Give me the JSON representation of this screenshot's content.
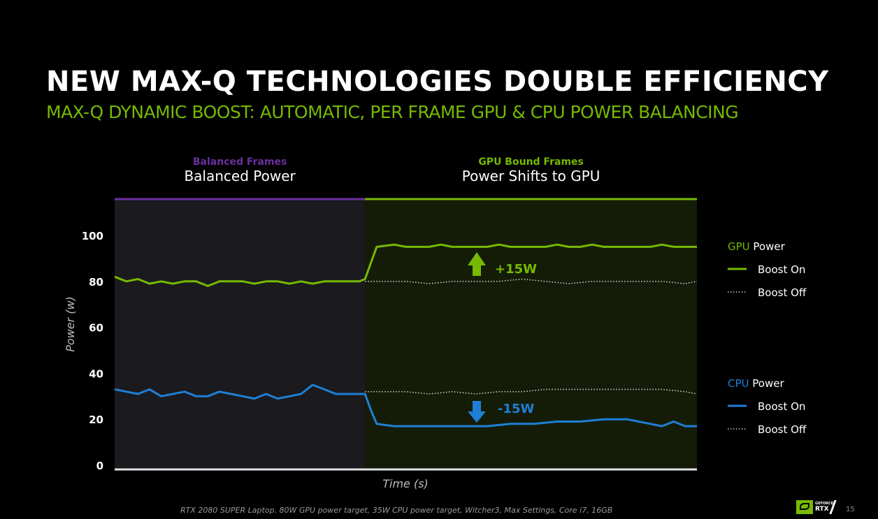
{
  "slide": {
    "title": "NEW MAX-Q TECHNOLOGIES DOUBLE EFFICIENCY",
    "subtitle": "MAX-Q DYNAMIC BOOST: AUTOMATIC, PER FRAME GPU & CPU POWER BALANCING",
    "footnote": "RTX 2080 SUPER Laptop. 80W GPU power target, 35W CPU power target, Witcher3, Max Settings, Core i7, 16GB",
    "page_number": "15",
    "logo_text_top": "GEFORCE",
    "logo_text_bottom": "RTX",
    "colors": {
      "accent_green": "#76b900",
      "purple": "#6b2fa0",
      "cpu_blue": "#1f7fd6"
    }
  },
  "chart_data": {
    "type": "line",
    "ylabel": "Power (w)",
    "xlabel": "Time (s)",
    "ylim": [
      0,
      100
    ],
    "yticks": [
      0,
      20,
      40,
      60,
      80,
      100
    ],
    "regions": [
      {
        "small_label": "Balanced Frames",
        "big_label": "Balanced Power",
        "color": "#6b2fa0",
        "x_range": [
          0,
          43
        ]
      },
      {
        "small_label": "GPU Bound Frames",
        "big_label": "Power Shifts to GPU",
        "color": "#76b900",
        "x_range": [
          43,
          100
        ]
      }
    ],
    "annotations": [
      {
        "text": "+15W",
        "direction": "up",
        "color": "#76b900"
      },
      {
        "text": "-15W",
        "direction": "down",
        "color": "#1f7fd6"
      }
    ],
    "legend": {
      "placement": "right",
      "groups": [
        {
          "title_colored": "GPU",
          "title_rest": " Power",
          "color": "#76b900",
          "items": [
            {
              "label": "Boost On",
              "style": "solid"
            },
            {
              "label": "Boost Off",
              "style": "dotted"
            }
          ]
        },
        {
          "title_colored": "CPU",
          "title_rest": " Power",
          "color": "#1f7fd6",
          "items": [
            {
              "label": "Boost On",
              "style": "solid"
            },
            {
              "label": "Boost Off",
              "style": "dotted"
            }
          ]
        }
      ]
    },
    "series": [
      {
        "name": "GPU Power Boost On",
        "color": "#76b900",
        "style": "solid",
        "x": [
          0,
          2,
          4,
          6,
          8,
          10,
          12,
          14,
          16,
          18,
          20,
          22,
          24,
          26,
          28,
          30,
          32,
          34,
          36,
          38,
          40,
          42,
          43,
          44,
          45,
          48,
          50,
          52,
          54,
          56,
          58,
          60,
          62,
          64,
          66,
          68,
          70,
          72,
          74,
          76,
          78,
          80,
          82,
          84,
          86,
          88,
          90,
          92,
          94,
          96,
          98,
          100
        ],
        "y": [
          82,
          80,
          81,
          79,
          80,
          79,
          80,
          80,
          78,
          80,
          80,
          80,
          79,
          80,
          80,
          79,
          80,
          79,
          80,
          80,
          80,
          80,
          81,
          88,
          95,
          96,
          95,
          95,
          95,
          96,
          95,
          95,
          95,
          95,
          96,
          95,
          95,
          95,
          95,
          96,
          95,
          95,
          96,
          95,
          95,
          95,
          95,
          95,
          96,
          95,
          95,
          95
        ]
      },
      {
        "name": "GPU Power Boost Off",
        "color": "#cfcfcf",
        "style": "dotted",
        "x": [
          43,
          46,
          50,
          54,
          58,
          62,
          66,
          70,
          74,
          78,
          82,
          86,
          90,
          94,
          98,
          100
        ],
        "y": [
          80,
          80,
          80,
          79,
          80,
          80,
          80,
          81,
          80,
          79,
          80,
          80,
          80,
          80,
          79,
          80
        ]
      },
      {
        "name": "CPU Power Boost On",
        "color": "#1f7fd6",
        "style": "solid",
        "x": [
          0,
          2,
          4,
          6,
          8,
          10,
          12,
          14,
          16,
          18,
          20,
          22,
          24,
          26,
          28,
          30,
          32,
          34,
          36,
          38,
          40,
          42,
          43,
          44,
          45,
          48,
          52,
          56,
          60,
          64,
          68,
          72,
          76,
          80,
          84,
          88,
          92,
          94,
          96,
          98,
          100
        ],
        "y": [
          33,
          32,
          31,
          33,
          30,
          31,
          32,
          30,
          30,
          32,
          31,
          30,
          29,
          31,
          29,
          30,
          31,
          35,
          33,
          31,
          31,
          31,
          31,
          24,
          18,
          17,
          17,
          17,
          17,
          17,
          18,
          18,
          19,
          19,
          20,
          20,
          18,
          17,
          19,
          17,
          17
        ]
      },
      {
        "name": "CPU Power Boost Off",
        "color": "#cfcfcf",
        "style": "dotted",
        "x": [
          43,
          46,
          50,
          54,
          58,
          62,
          66,
          70,
          74,
          78,
          82,
          86,
          90,
          94,
          98,
          100
        ],
        "y": [
          32,
          32,
          32,
          31,
          32,
          31,
          32,
          32,
          33,
          33,
          33,
          33,
          33,
          33,
          32,
          31
        ]
      }
    ]
  }
}
